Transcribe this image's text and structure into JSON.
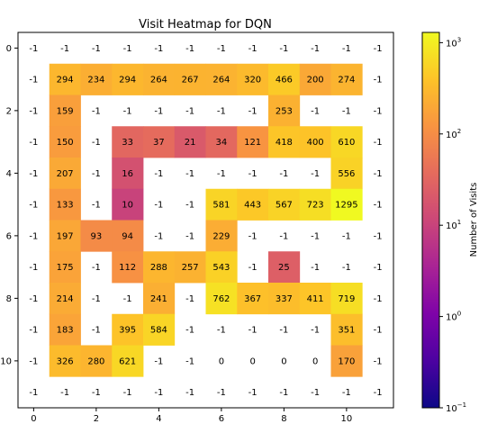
{
  "chart_data": {
    "type": "heatmap",
    "title": "Visit Heatmap for DQN",
    "xlabel": "",
    "ylabel": "",
    "rows": 12,
    "cols": 12,
    "x_ticks": [
      0,
      2,
      4,
      6,
      8,
      10
    ],
    "y_ticks": [
      0,
      2,
      4,
      6,
      8,
      10
    ],
    "values": [
      [
        -1,
        -1,
        -1,
        -1,
        -1,
        -1,
        -1,
        -1,
        -1,
        -1,
        -1,
        -1
      ],
      [
        -1,
        294,
        234,
        294,
        264,
        267,
        264,
        320,
        466,
        200,
        274,
        -1
      ],
      [
        -1,
        159,
        -1,
        -1,
        -1,
        -1,
        -1,
        -1,
        253,
        -1,
        -1,
        -1
      ],
      [
        -1,
        150,
        -1,
        33,
        37,
        21,
        34,
        121,
        418,
        400,
        610,
        -1
      ],
      [
        -1,
        207,
        -1,
        16,
        -1,
        -1,
        -1,
        -1,
        -1,
        -1,
        556,
        -1
      ],
      [
        -1,
        133,
        -1,
        10,
        -1,
        -1,
        581,
        443,
        567,
        723,
        1295,
        -1
      ],
      [
        -1,
        197,
        93,
        94,
        -1,
        -1,
        229,
        -1,
        -1,
        -1,
        -1,
        -1
      ],
      [
        -1,
        175,
        -1,
        112,
        288,
        257,
        543,
        -1,
        25,
        -1,
        -1,
        -1
      ],
      [
        -1,
        214,
        -1,
        -1,
        241,
        -1,
        762,
        367,
        337,
        411,
        719,
        -1
      ],
      [
        -1,
        183,
        -1,
        395,
        584,
        -1,
        -1,
        -1,
        -1,
        -1,
        351,
        -1
      ],
      [
        -1,
        326,
        280,
        621,
        -1,
        -1,
        0,
        0,
        0,
        0,
        170,
        -1
      ],
      [
        -1,
        -1,
        -1,
        -1,
        -1,
        -1,
        -1,
        -1,
        -1,
        -1,
        -1,
        -1
      ]
    ],
    "colorbar": {
      "label": "Number of Visits",
      "scale": "log",
      "colormap": "plasma",
      "range": [
        0.1,
        1295
      ],
      "ticks": [
        {
          "base": "10",
          "exp": "3",
          "value": 1000
        },
        {
          "base": "10",
          "exp": "2",
          "value": 100
        },
        {
          "base": "10",
          "exp": "1",
          "value": 10
        },
        {
          "base": "10",
          "exp": "0",
          "value": 1
        },
        {
          "base": "10",
          "exp": "−1",
          "value": 0.1
        }
      ]
    },
    "grid": false
  }
}
